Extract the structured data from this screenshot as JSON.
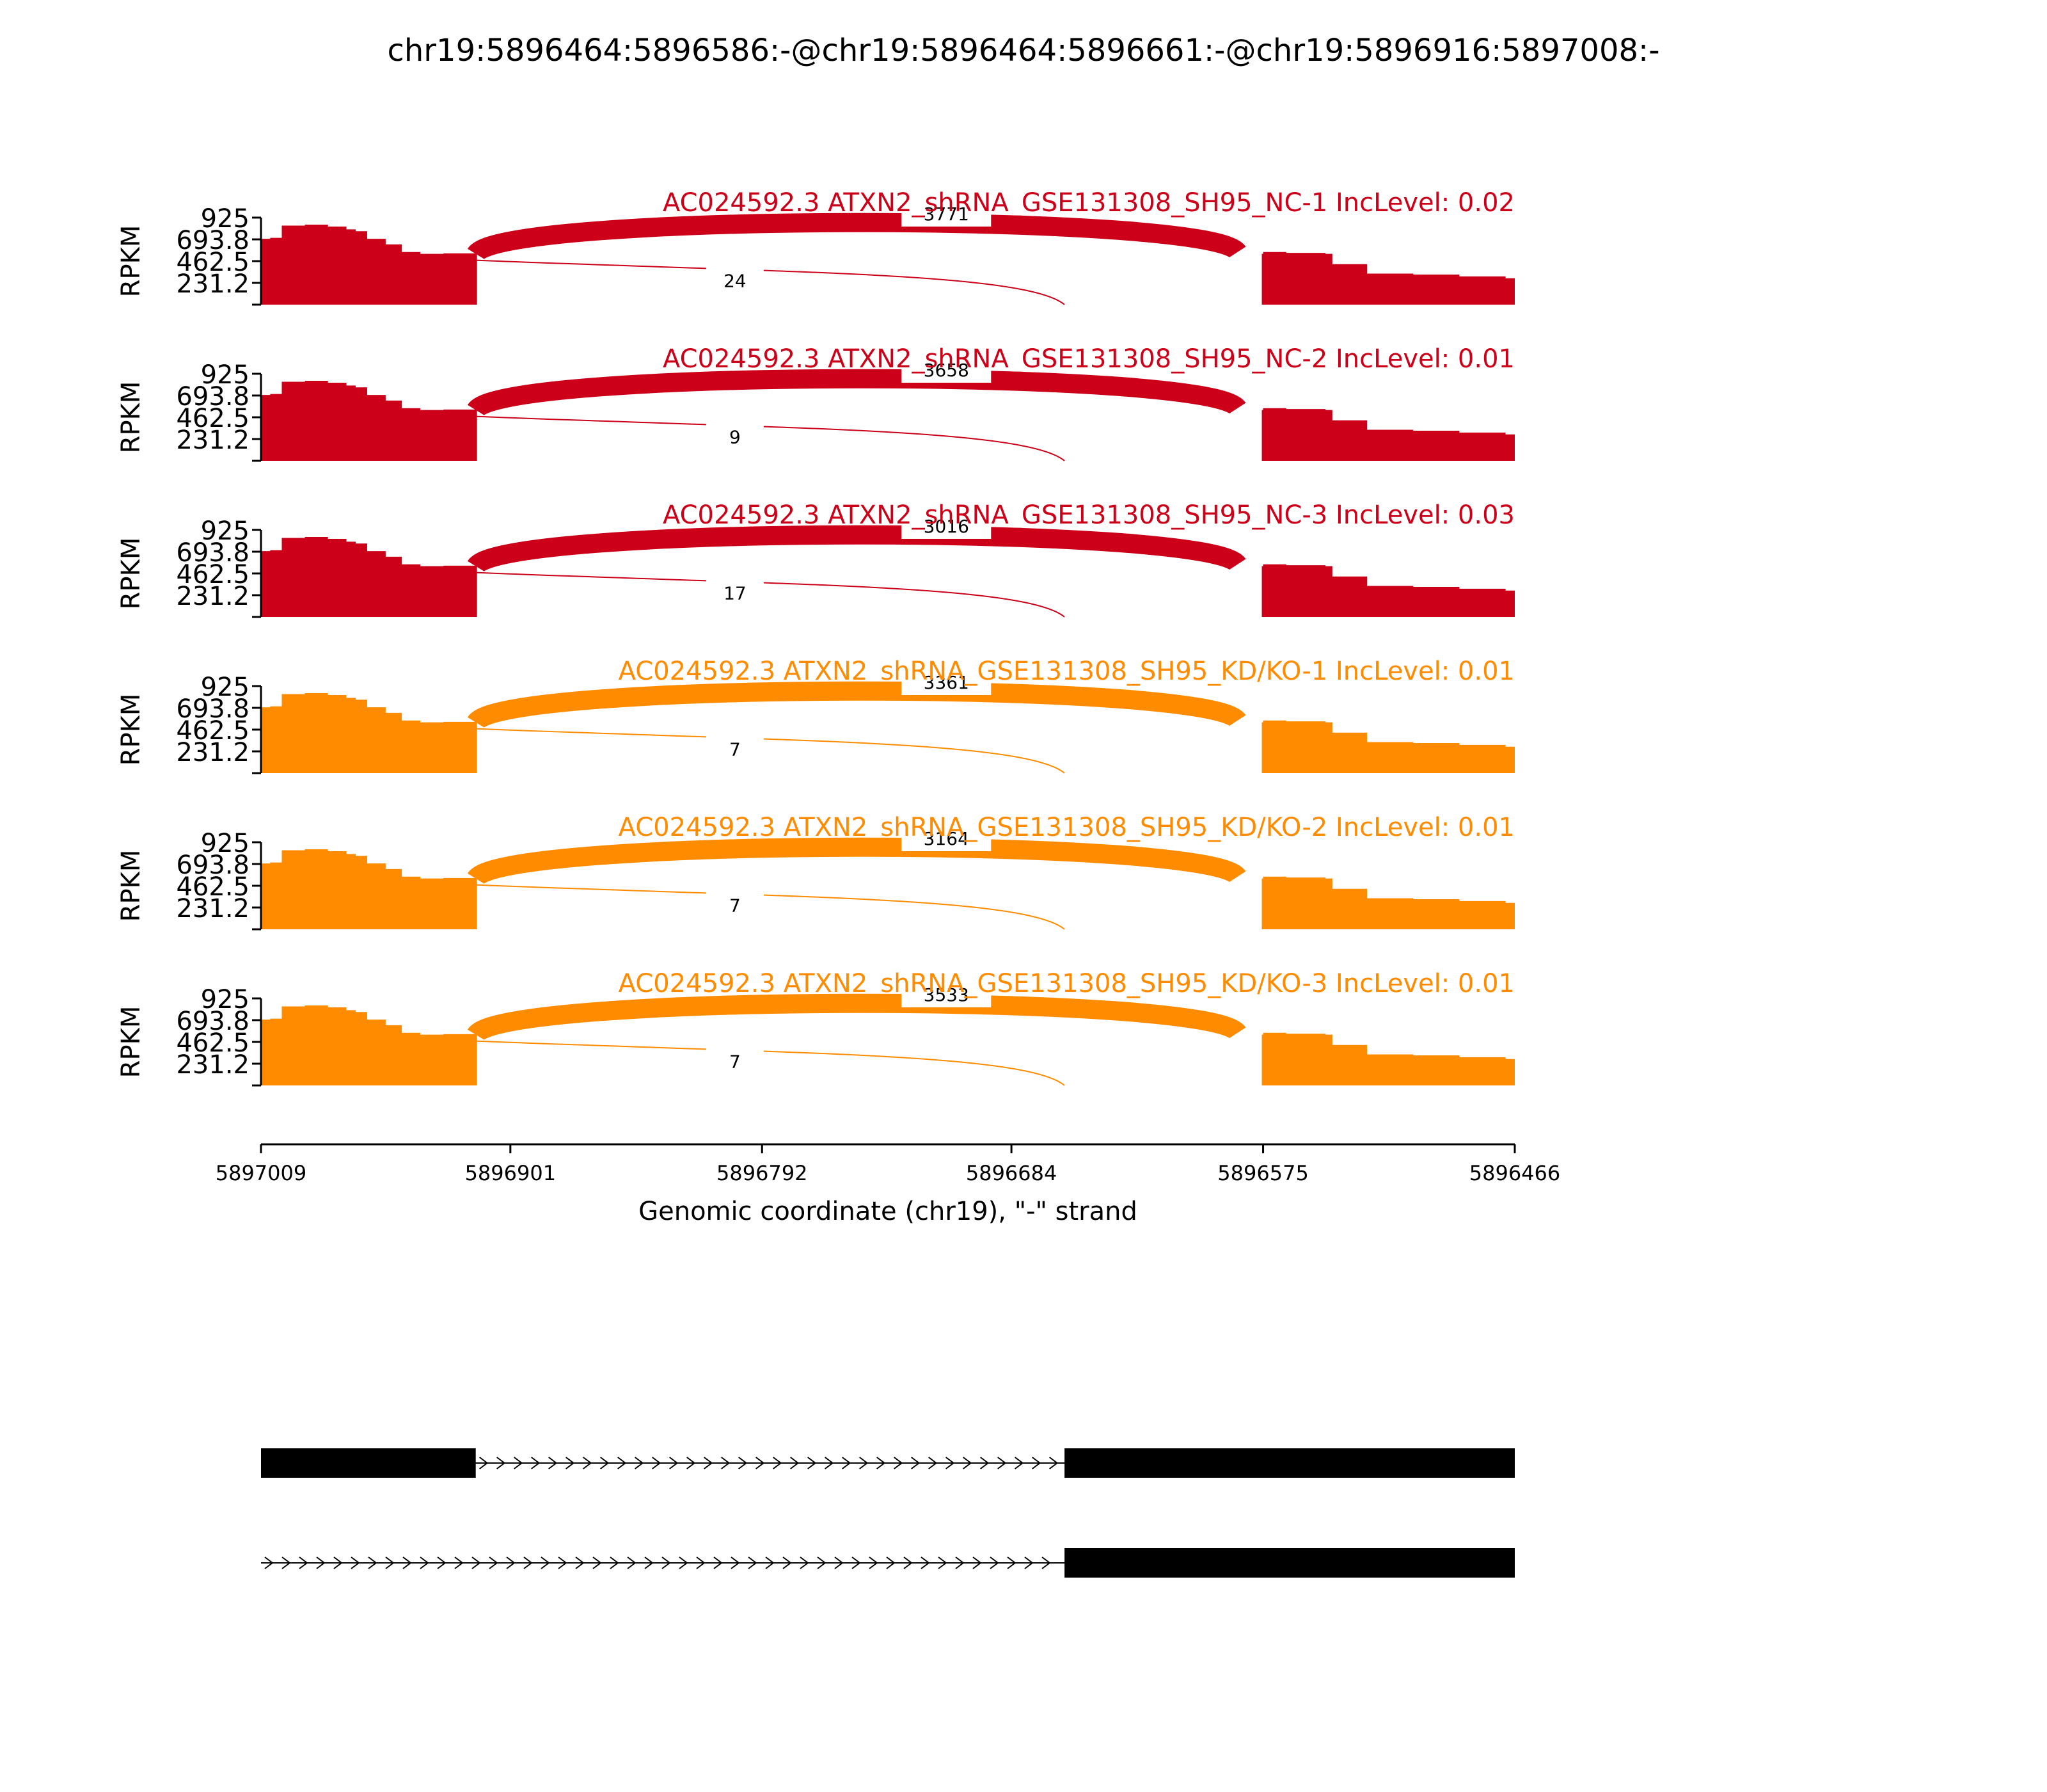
{
  "title": "chr19:5896464:5896586:-@chr19:5896464:5896661:-@chr19:5896916:5897008:-",
  "colors": {
    "NC": "#cc0018",
    "KD": "#ff8c00",
    "axis": "#000000",
    "gene": "#000000"
  },
  "chart_data": {
    "type": "area",
    "title": "chr19:5896464:5896586:-@chr19:5896464:5896661:-@chr19:5896916:5897008:-",
    "ylabel": "RPKM",
    "ylim": [
      0,
      925
    ],
    "yticks": [
      "925",
      "693.8",
      "462.5",
      "231.2"
    ],
    "ytick_values": [
      925,
      693.8,
      462.5,
      231.2
    ],
    "xlabel": "Genomic coordinate (chr19), \"-\" strand",
    "xlim": [
      5897009,
      5896466
    ],
    "xticks": [
      "5897009",
      "5896901",
      "5896792",
      "5896684",
      "5896575",
      "5896466"
    ],
    "xtick_values": [
      5897009,
      5896901,
      5896792,
      5896684,
      5896575,
      5896466
    ],
    "coverage_profile": [
      {
        "x": 5897009,
        "y": 700
      },
      {
        "x": 5897005,
        "y": 710
      },
      {
        "x": 5897000,
        "y": 840
      },
      {
        "x": 5896990,
        "y": 850
      },
      {
        "x": 5896980,
        "y": 830
      },
      {
        "x": 5896972,
        "y": 800
      },
      {
        "x": 5896968,
        "y": 780
      },
      {
        "x": 5896963,
        "y": 700
      },
      {
        "x": 5896955,
        "y": 640
      },
      {
        "x": 5896948,
        "y": 560
      },
      {
        "x": 5896940,
        "y": 540
      },
      {
        "x": 5896930,
        "y": 545
      },
      {
        "x": 5896916,
        "y": 540
      },
      {
        "x": 5896575,
        "y": 560
      },
      {
        "x": 5896565,
        "y": 550
      },
      {
        "x": 5896548,
        "y": 540
      },
      {
        "x": 5896545,
        "y": 430
      },
      {
        "x": 5896530,
        "y": 330
      },
      {
        "x": 5896510,
        "y": 320
      },
      {
        "x": 5896490,
        "y": 300
      },
      {
        "x": 5896470,
        "y": 280
      },
      {
        "x": 5896466,
        "y": 260
      }
    ],
    "panels": [
      {
        "name": "AC024592.3 ATXN2_shRNA_GSE131308_SH95_NC-1 IncLevel: 0.02",
        "group": "NC",
        "junctions": [
          {
            "from": 5896916,
            "to": 5896586,
            "label": "3771"
          },
          {
            "from": 5896916,
            "to": 5896661,
            "label": "24"
          }
        ]
      },
      {
        "name": "AC024592.3 ATXN2_shRNA_GSE131308_SH95_NC-2 IncLevel: 0.01",
        "group": "NC",
        "junctions": [
          {
            "from": 5896916,
            "to": 5896586,
            "label": "3658"
          },
          {
            "from": 5896916,
            "to": 5896661,
            "label": "9"
          }
        ]
      },
      {
        "name": "AC024592.3 ATXN2_shRNA_GSE131308_SH95_NC-3 IncLevel: 0.03",
        "group": "NC",
        "junctions": [
          {
            "from": 5896916,
            "to": 5896586,
            "label": "3016"
          },
          {
            "from": 5896916,
            "to": 5896661,
            "label": "17"
          }
        ]
      },
      {
        "name": "AC024592.3 ATXN2_shRNA_GSE131308_SH95_KD/KO-1 IncLevel: 0.01",
        "group": "KD",
        "junctions": [
          {
            "from": 5896916,
            "to": 5896586,
            "label": "3361"
          },
          {
            "from": 5896916,
            "to": 5896661,
            "label": "7"
          }
        ]
      },
      {
        "name": "AC024592.3 ATXN2_shRNA_GSE131308_SH95_KD/KO-2 IncLevel: 0.01",
        "group": "KD",
        "junctions": [
          {
            "from": 5896916,
            "to": 5896586,
            "label": "3164"
          },
          {
            "from": 5896916,
            "to": 5896661,
            "label": "7"
          }
        ]
      },
      {
        "name": "AC024592.3 ATXN2_shRNA_GSE131308_SH95_KD/KO-3 IncLevel: 0.01",
        "group": "KD",
        "junctions": [
          {
            "from": 5896916,
            "to": 5896586,
            "label": "3533"
          },
          {
            "from": 5896916,
            "to": 5896661,
            "label": "7"
          }
        ]
      }
    ],
    "gene_models": [
      {
        "exons": [
          [
            5897009,
            5896916
          ],
          [
            5896661,
            5896466
          ]
        ]
      },
      {
        "exons": [
          [
            5896661,
            5896466
          ]
        ]
      }
    ]
  }
}
